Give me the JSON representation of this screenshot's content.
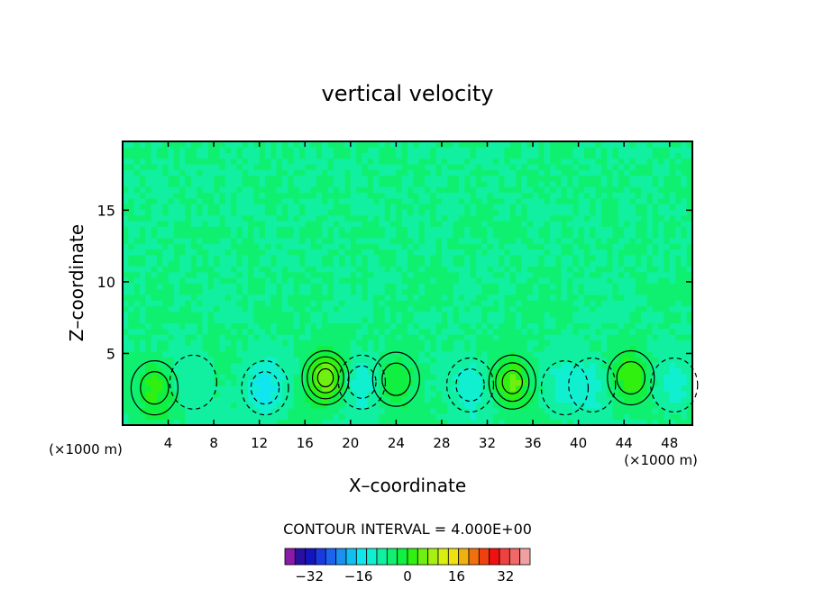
{
  "chart_data": {
    "type": "heatmap",
    "title": "vertical velocity",
    "xlabel": "X–coordinate",
    "ylabel": "Z–coordinate",
    "x_unit": "(×1000 m)",
    "y_unit": "(×1000 m)",
    "xlim": [
      0,
      50
    ],
    "ylim": [
      0,
      19.8
    ],
    "x_ticks": [
      4,
      8,
      12,
      16,
      20,
      24,
      28,
      32,
      36,
      40,
      44,
      48
    ],
    "x_tick_labels": [
      "4",
      "8",
      "12",
      "16",
      "20",
      "24",
      "28",
      "32",
      "36",
      "40",
      "44",
      "48"
    ],
    "y_ticks": [
      5,
      10,
      15
    ],
    "y_tick_labels": [
      "5",
      "10",
      "15"
    ],
    "contour_interval_text": "CONTOUR INTERVAL = 4.000E+00",
    "contour_interval": 4,
    "colorbar": {
      "min": -40,
      "max": 40,
      "step": 4,
      "tick_values": [
        -32,
        -16,
        0,
        16,
        32
      ],
      "tick_labels": [
        "−32",
        "−16",
        "0",
        "16",
        "32"
      ],
      "colors": [
        "#8a1aa8",
        "#2a10a0",
        "#1414c0",
        "#1a3ae0",
        "#1a64f0",
        "#1a90f0",
        "#10c0f0",
        "#10e6f0",
        "#10f0d0",
        "#10f0a0",
        "#10f070",
        "#10f040",
        "#30f010",
        "#70f010",
        "#a8f010",
        "#d8f010",
        "#f0e010",
        "#f0b010",
        "#f07010",
        "#f04010",
        "#f01010",
        "#f04040",
        "#f06868",
        "#f0a0a0"
      ]
    },
    "features": [
      {
        "x": 2.8,
        "z": 2.6,
        "w": 10,
        "kind": "updraft"
      },
      {
        "x": 6.2,
        "z": 3.0,
        "w": -4,
        "kind": "downdraft"
      },
      {
        "x": 12.5,
        "z": 2.6,
        "w": -10,
        "kind": "downdraft"
      },
      {
        "x": 17.8,
        "z": 3.3,
        "w": 16,
        "kind": "updraft"
      },
      {
        "x": 21.0,
        "z": 3.0,
        "w": -8,
        "kind": "downdraft"
      },
      {
        "x": 24.0,
        "z": 3.2,
        "w": 8,
        "kind": "updraft"
      },
      {
        "x": 30.5,
        "z": 2.8,
        "w": -8,
        "kind": "downdraft"
      },
      {
        "x": 34.2,
        "z": 3.0,
        "w": 13,
        "kind": "updraft"
      },
      {
        "x": 38.8,
        "z": 2.6,
        "w": -6,
        "kind": "downdraft"
      },
      {
        "x": 41.2,
        "z": 2.8,
        "w": -6,
        "kind": "downdraft"
      },
      {
        "x": 44.6,
        "z": 3.3,
        "w": 11,
        "kind": "updraft"
      },
      {
        "x": 48.4,
        "z": 2.8,
        "w": -5,
        "kind": "downdraft"
      }
    ]
  }
}
